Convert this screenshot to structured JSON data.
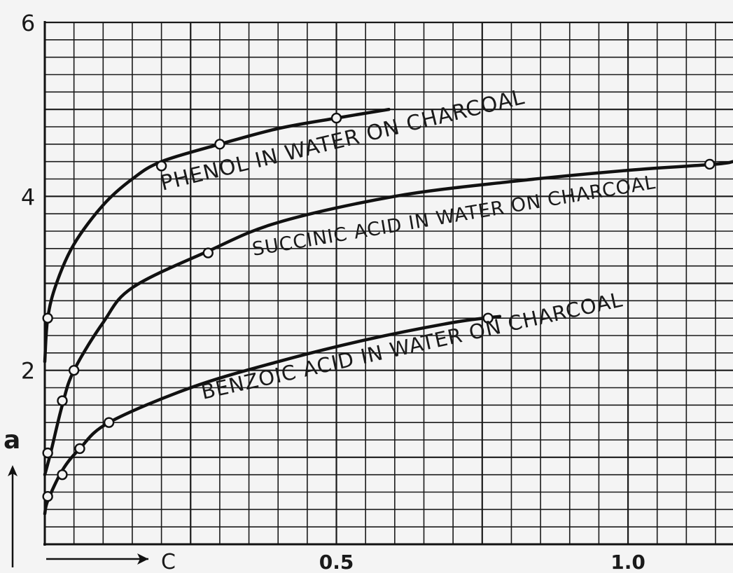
{
  "chart_data": {
    "type": "line",
    "xlabel": "C",
    "ylabel": "a",
    "xlim": [
      0,
      1.18
    ],
    "ylim": [
      0,
      6
    ],
    "grid": true,
    "x_ticks": [
      {
        "value": 0.5,
        "label": "0.5"
      },
      {
        "value": 1.0,
        "label": "1.0"
      }
    ],
    "y_ticks": [
      {
        "value": 2,
        "label": "2"
      },
      {
        "value": 4,
        "label": "4"
      },
      {
        "value": 6,
        "label": "6"
      }
    ],
    "series": [
      {
        "name": "PHENOL IN WATER ON CHARCOAL",
        "curve": [
          [
            0.0,
            2.1
          ],
          [
            0.005,
            2.6
          ],
          [
            0.02,
            3.0
          ],
          [
            0.05,
            3.45
          ],
          [
            0.1,
            3.9
          ],
          [
            0.15,
            4.2
          ],
          [
            0.2,
            4.4
          ],
          [
            0.3,
            4.6
          ],
          [
            0.4,
            4.78
          ],
          [
            0.5,
            4.9
          ],
          [
            0.59,
            5.0
          ]
        ],
        "points": [
          [
            0.005,
            2.6
          ],
          [
            0.2,
            4.35
          ],
          [
            0.3,
            4.6
          ],
          [
            0.5,
            4.9
          ]
        ]
      },
      {
        "name": "SUCCINIC ACID IN WATER ON CHARCOAL",
        "curve": [
          [
            0.0,
            0.8
          ],
          [
            0.01,
            1.05
          ],
          [
            0.03,
            1.6
          ],
          [
            0.05,
            2.0
          ],
          [
            0.1,
            2.55
          ],
          [
            0.15,
            2.95
          ],
          [
            0.28,
            3.37
          ],
          [
            0.4,
            3.7
          ],
          [
            0.6,
            4.0
          ],
          [
            0.8,
            4.17
          ],
          [
            1.0,
            4.3
          ],
          [
            1.15,
            4.37
          ],
          [
            1.18,
            4.4
          ]
        ],
        "points": [
          [
            0.005,
            1.05
          ],
          [
            0.03,
            1.65
          ],
          [
            0.05,
            2.0
          ],
          [
            0.28,
            3.35
          ],
          [
            1.14,
            4.37
          ]
        ]
      },
      {
        "name": "BENZOIC ACID IN WATER ON CHARCOAL",
        "curve": [
          [
            0.0,
            0.35
          ],
          [
            0.005,
            0.5
          ],
          [
            0.03,
            0.85
          ],
          [
            0.06,
            1.1
          ],
          [
            0.11,
            1.4
          ],
          [
            0.25,
            1.8
          ],
          [
            0.4,
            2.1
          ],
          [
            0.55,
            2.35
          ],
          [
            0.7,
            2.55
          ],
          [
            0.78,
            2.62
          ]
        ],
        "points": [
          [
            0.005,
            0.55
          ],
          [
            0.03,
            0.8
          ],
          [
            0.06,
            1.1
          ],
          [
            0.11,
            1.4
          ],
          [
            0.76,
            2.6
          ]
        ]
      }
    ]
  }
}
